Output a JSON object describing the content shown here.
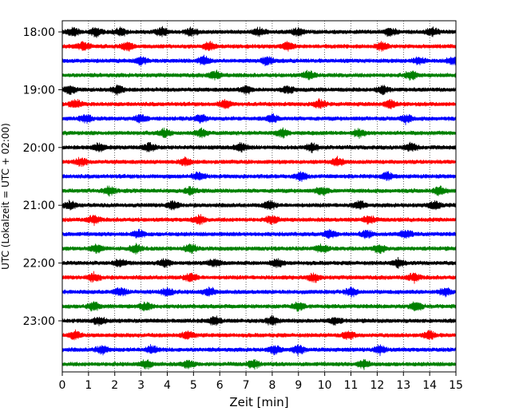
{
  "chart_data": {
    "type": "line",
    "title": "",
    "xlabel": "Zeit  [min]",
    "ylabel": "UTC (Lokalzeit = UTC + 02:00)",
    "xlim": [
      0,
      15
    ],
    "x_ticks": [
      "0",
      "1",
      "2",
      "3",
      "4",
      "5",
      "6",
      "7",
      "8",
      "9",
      "10",
      "11",
      "12",
      "13",
      "14",
      "15"
    ],
    "y_ticks": [
      "18:00",
      "19:00",
      "20:00",
      "21:00",
      "22:00",
      "23:00"
    ],
    "grid": "vertical dotted lines at each minute",
    "row_interval_minutes": 15,
    "series_colors": [
      "#000000",
      "#ff0000",
      "#0000ff",
      "#008000"
    ],
    "rows": [
      {
        "time": "18:00",
        "color": "#000000"
      },
      {
        "time": "18:15",
        "color": "#ff0000"
      },
      {
        "time": "18:30",
        "color": "#0000ff"
      },
      {
        "time": "18:45",
        "color": "#008000"
      },
      {
        "time": "19:00",
        "color": "#000000"
      },
      {
        "time": "19:15",
        "color": "#ff0000"
      },
      {
        "time": "19:30",
        "color": "#0000ff"
      },
      {
        "time": "19:45",
        "color": "#008000"
      },
      {
        "time": "20:00",
        "color": "#000000"
      },
      {
        "time": "20:15",
        "color": "#ff0000"
      },
      {
        "time": "20:30",
        "color": "#0000ff"
      },
      {
        "time": "20:45",
        "color": "#008000"
      },
      {
        "time": "21:00",
        "color": "#000000"
      },
      {
        "time": "21:15",
        "color": "#ff0000"
      },
      {
        "time": "21:30",
        "color": "#0000ff"
      },
      {
        "time": "21:45",
        "color": "#008000"
      },
      {
        "time": "22:00",
        "color": "#000000"
      },
      {
        "time": "22:15",
        "color": "#ff0000"
      },
      {
        "time": "22:30",
        "color": "#0000ff"
      },
      {
        "time": "22:45",
        "color": "#008000"
      },
      {
        "time": "23:00",
        "color": "#000000"
      },
      {
        "time": "23:15",
        "color": "#ff0000"
      },
      {
        "time": "23:30",
        "color": "#0000ff"
      },
      {
        "time": "23:45",
        "color": "#008000"
      }
    ],
    "bursts": [
      {
        "row": 0,
        "minutes": [
          0.4,
          1.3,
          2.2,
          3.8,
          4.9,
          7.5,
          9.0,
          12.5,
          14.1
        ]
      },
      {
        "row": 1,
        "minutes": [
          0.8,
          2.5,
          5.6,
          8.6,
          12.2
        ]
      },
      {
        "row": 2,
        "minutes": [
          3.0,
          5.4,
          7.8,
          13.6,
          14.9
        ]
      },
      {
        "row": 3,
        "minutes": [
          5.8,
          9.4,
          13.3
        ]
      },
      {
        "row": 4,
        "minutes": [
          0.3,
          2.1,
          7.0,
          8.6,
          12.2
        ]
      },
      {
        "row": 5,
        "minutes": [
          0.5,
          6.2,
          9.8,
          12.5
        ]
      },
      {
        "row": 6,
        "minutes": [
          0.9,
          3.0,
          5.3,
          8.0,
          13.1
        ]
      },
      {
        "row": 7,
        "minutes": [
          3.9,
          5.3,
          8.4,
          11.3
        ]
      },
      {
        "row": 8,
        "minutes": [
          1.4,
          3.3,
          6.8,
          9.5,
          13.3
        ]
      },
      {
        "row": 9,
        "minutes": [
          0.7,
          4.7,
          10.5
        ]
      },
      {
        "row": 10,
        "minutes": [
          5.2,
          9.1,
          12.4
        ]
      },
      {
        "row": 11,
        "minutes": [
          1.8,
          4.9,
          9.9,
          14.4
        ]
      },
      {
        "row": 12,
        "minutes": [
          0.3,
          4.2,
          7.9,
          11.3,
          14.2
        ]
      },
      {
        "row": 13,
        "minutes": [
          1.2,
          5.2,
          8.0,
          11.7
        ]
      },
      {
        "row": 14,
        "minutes": [
          2.9,
          10.2,
          11.6,
          13.1
        ]
      },
      {
        "row": 15,
        "minutes": [
          1.3,
          2.8,
          4.9,
          9.9,
          12.1
        ]
      },
      {
        "row": 16,
        "minutes": [
          2.2,
          3.9,
          5.8,
          8.2,
          12.8
        ]
      },
      {
        "row": 17,
        "minutes": [
          1.2,
          4.9,
          9.6,
          13.4
        ]
      },
      {
        "row": 18,
        "minutes": [
          2.2,
          4.0,
          5.6,
          11.0,
          14.6
        ]
      },
      {
        "row": 19,
        "minutes": [
          1.2,
          3.2,
          9.0,
          13.5
        ]
      },
      {
        "row": 20,
        "minutes": [
          1.4,
          5.8,
          8.0,
          10.4
        ]
      },
      {
        "row": 21,
        "minutes": [
          0.5,
          4.8,
          10.9,
          14.0
        ]
      },
      {
        "row": 22,
        "minutes": [
          1.5,
          3.4,
          8.1,
          9.0,
          12.1
        ]
      },
      {
        "row": 23,
        "minutes": [
          3.2,
          4.8,
          7.3,
          11.5
        ]
      }
    ]
  }
}
